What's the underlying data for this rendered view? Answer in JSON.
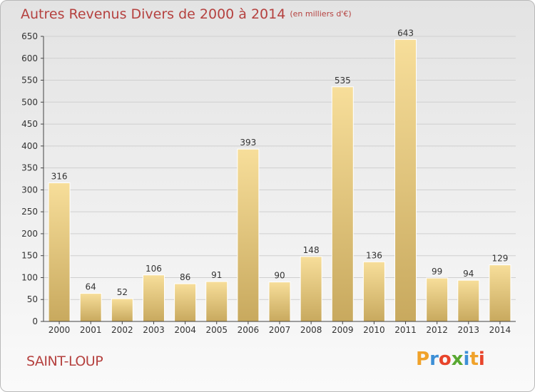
{
  "chart_data": {
    "type": "bar",
    "title": "Autres Revenus Divers de 2000 à 2014",
    "subtitle": "(en milliers d'€)",
    "categories": [
      "2000",
      "2001",
      "2002",
      "2003",
      "2004",
      "2005",
      "2006",
      "2007",
      "2008",
      "2009",
      "2010",
      "2011",
      "2012",
      "2013",
      "2014"
    ],
    "values": [
      316,
      64,
      52,
      106,
      86,
      91,
      393,
      90,
      148,
      535,
      136,
      643,
      99,
      94,
      129
    ],
    "ylim": [
      0,
      650
    ],
    "yticks": [
      0,
      50,
      100,
      150,
      200,
      250,
      300,
      350,
      400,
      450,
      500,
      550,
      600,
      650
    ],
    "grid": true,
    "legend": "none"
  },
  "location": "SAINT-LOUP",
  "logo": {
    "letters": [
      "P",
      "r",
      "o",
      "x",
      "i",
      "t",
      "i"
    ],
    "colors": [
      "#f0a22a",
      "#3d8fd6",
      "#e8442b",
      "#59a832",
      "#3d8fd6",
      "#f0a22a",
      "#e8442b"
    ]
  },
  "colors": {
    "text_accent": "#b5413f",
    "bar_light": "#f7de9a",
    "bar_dark": "#c8a95e",
    "grid": "#cfcfcf",
    "axis": "#444444"
  }
}
